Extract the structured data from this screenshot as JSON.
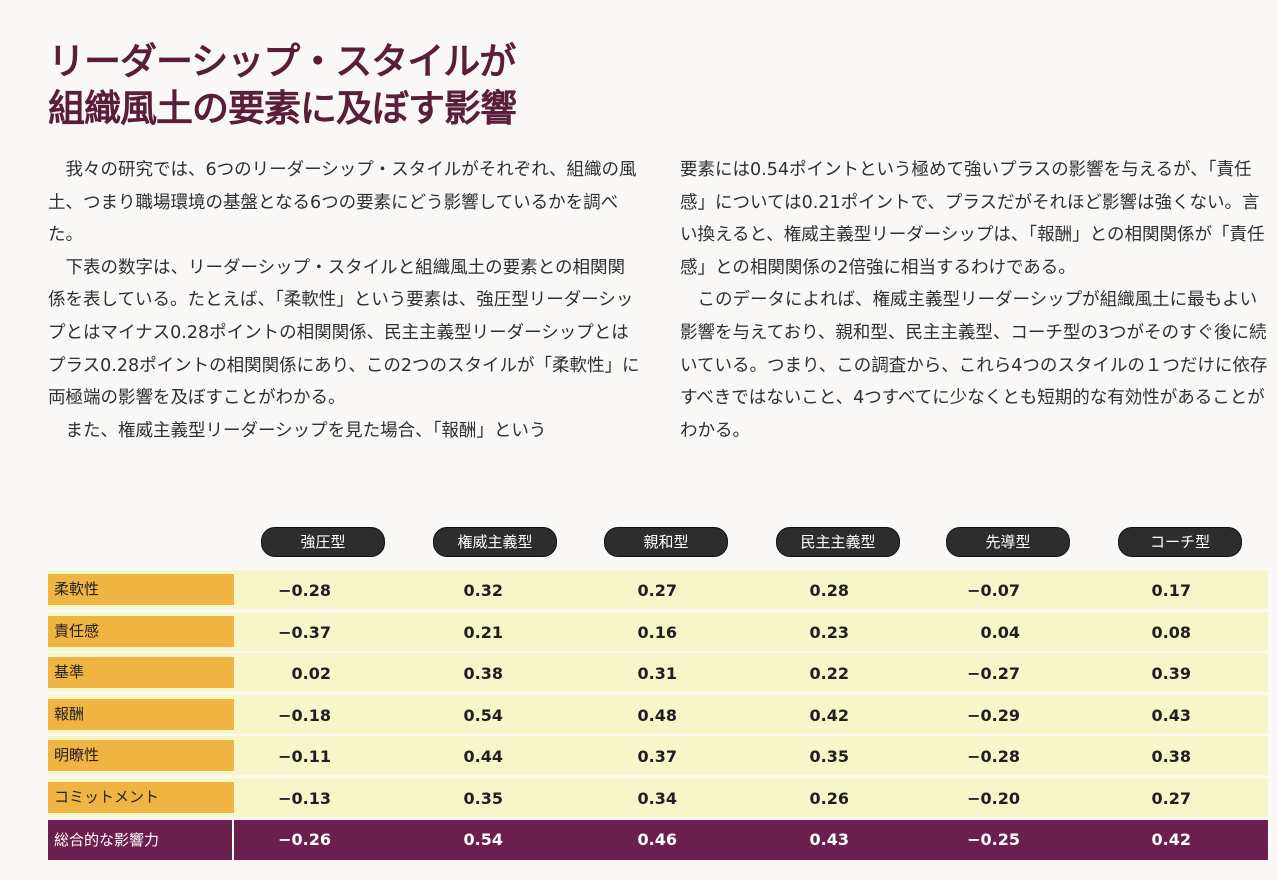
{
  "title": {
    "line1": "リーダーシップ・スタイルが",
    "line2": "組織風土の要素に及ぼす影響"
  },
  "body_left": [
    "我々の研究では、6つのリーダーシップ・スタイルがそれぞれ、組織の風土、つまり職場環境の基盤となる6つの要素にどう影響しているかを調べた。",
    "下表の数字は、リーダーシップ・スタイルと組織風土の要素との相関関係を表している。たとえば、「柔軟性」という要素は、強圧型リーダーシップとはマイナス0.28ポイントの相関関係、民主主義型リーダーシップとはプラス0.28ポイントの相関関係にあり、この2つのスタイルが「柔軟性」に両極端の影響を及ぼすことがわかる。",
    "また、権威主義型リーダーシップを見た場合、「報酬」という"
  ],
  "body_right": [
    "要素には0.54ポイントという極めて強いプラスの影響を与えるが、「責任感」については0.21ポイントで、プラスだがそれほど影響は強くない。言い換えると、権威主義型リーダーシップは、「報酬」との相関関係が「責任感」との相関関係の2倍強に相当するわけである。",
    "このデータによれば、権威主義型リーダーシップが組織風土に最もよい影響を与えており、親和型、民主主義型、コーチ型の3つがそのすぐ後に続いている。つまり、この調査から、これら4つのスタイルの１つだけに依存すべきではないこと、4つすべてに少なくとも短期的な有効性があることがわかる。"
  ],
  "table": {
    "columns": [
      "強圧型",
      "権威主義型",
      "親和型",
      "民主主義型",
      "先導型",
      "コーチ型"
    ],
    "rows": [
      {
        "label": "柔軟性",
        "values": [
          "−0.28",
          "0.32",
          "0.27",
          "0.28",
          "−0.07",
          "0.17"
        ]
      },
      {
        "label": "責任感",
        "values": [
          "−0.37",
          "0.21",
          "0.16",
          "0.23",
          "0.04",
          "0.08"
        ]
      },
      {
        "label": "基準",
        "values": [
          "0.02",
          "0.38",
          "0.31",
          "0.22",
          "−0.27",
          "0.39"
        ]
      },
      {
        "label": "報酬",
        "values": [
          "−0.18",
          "0.54",
          "0.48",
          "0.42",
          "−0.29",
          "0.43"
        ]
      },
      {
        "label": "明瞭性",
        "values": [
          "−0.11",
          "0.44",
          "0.37",
          "0.35",
          "−0.28",
          "0.38"
        ]
      },
      {
        "label": "コミットメント",
        "values": [
          "−0.13",
          "0.35",
          "0.34",
          "0.26",
          "−0.20",
          "0.27"
        ]
      }
    ],
    "total": {
      "label": "総合的な影響力",
      "values": [
        "−0.26",
        "0.54",
        "0.46",
        "0.43",
        "−0.25",
        "0.42"
      ]
    }
  },
  "colors": {
    "title": "#5a1d3a",
    "row_label_bg": "#f0b443",
    "row_bg": "#f6f6c8",
    "total_bg": "#6a1f4d",
    "pill_bg": "#2d2d2d"
  }
}
